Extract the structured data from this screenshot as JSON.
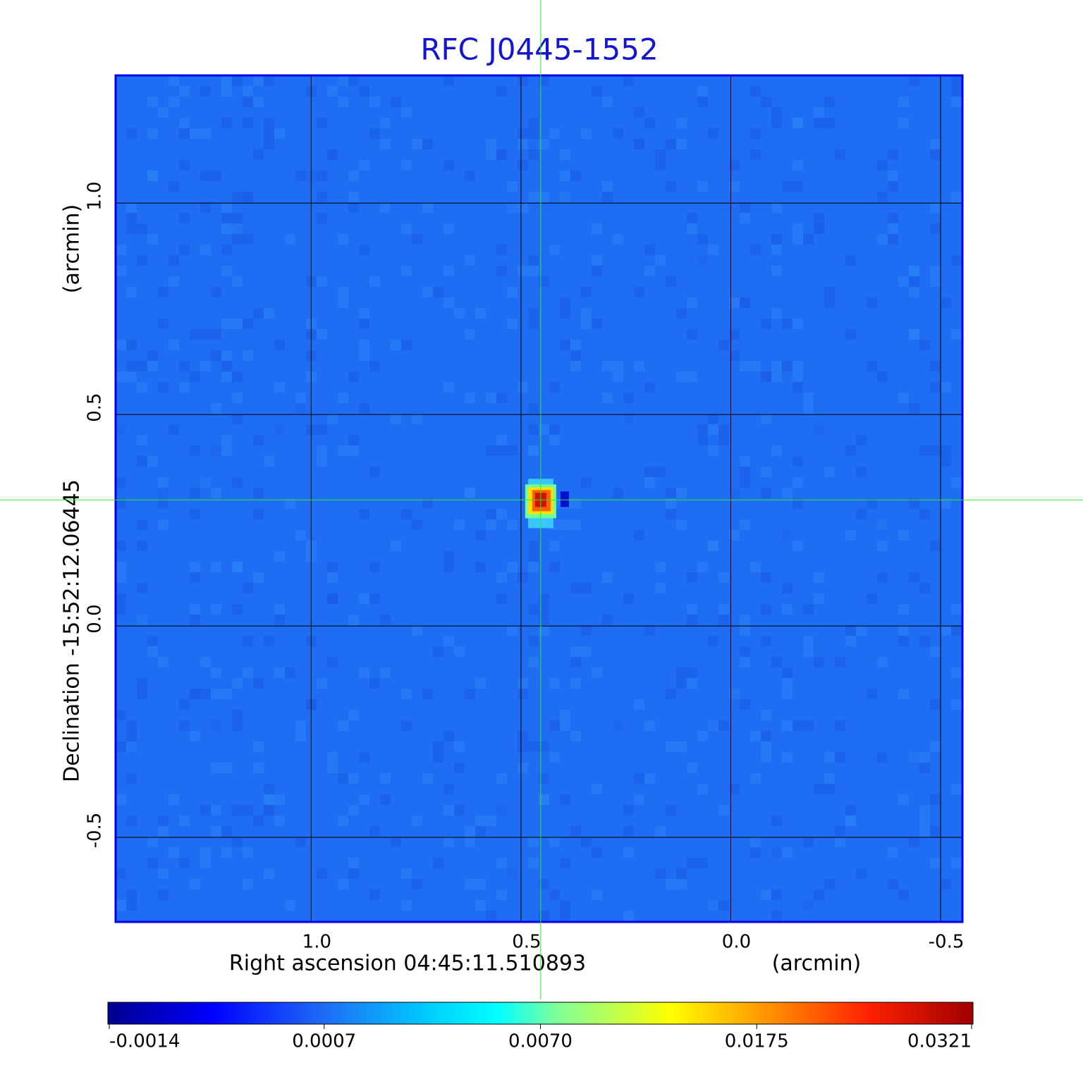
{
  "chart_data": {
    "type": "image",
    "title": "RFC J0445-1552",
    "xlabel": "Right ascension  04:45:11.510893",
    "xunit": "(arcmin)",
    "ylabel": "Declination  -15:52:12.06445",
    "yunit": "(arcmin)",
    "xlim": [
      1.466,
      -0.552
    ],
    "ylim": [
      -0.7,
      1.302
    ],
    "xticks": [
      {
        "value": 1,
        "label": "1.0"
      },
      0.5,
      {
        "value": 0,
        "label": "0.0"
      },
      -0.5
    ],
    "yticks": [
      {
        "value": 1,
        "label": "1.0"
      },
      0.5,
      {
        "value": 0,
        "label": "0.0"
      },
      -0.5
    ],
    "grid": true,
    "crosshair": {
      "x": 0.453,
      "y": 0.298
    },
    "colorbar_ticks": [
      -0.0014,
      0.0007,
      {
        "value": 0.007,
        "label": "0.0070"
      },
      0.0175,
      0.0321
    ]
  }
}
